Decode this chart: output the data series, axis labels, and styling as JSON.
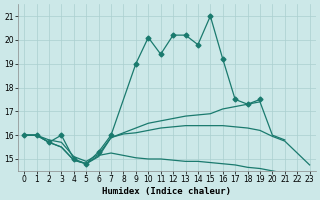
{
  "line_color": "#1a7a6e",
  "bg_color": "#cce8e8",
  "grid_color": "#aacfcf",
  "xlabel": "Humidex (Indice chaleur)",
  "xlim": [
    -0.5,
    23.5
  ],
  "ylim": [
    14.5,
    21.5
  ],
  "yticks": [
    15,
    16,
    17,
    18,
    19,
    20,
    21
  ],
  "xticks": [
    0,
    1,
    2,
    3,
    4,
    5,
    6,
    7,
    8,
    9,
    10,
    11,
    12,
    13,
    14,
    15,
    16,
    17,
    18,
    19,
    20,
    21,
    22,
    23
  ],
  "markersize": 2.5,
  "linewidth": 0.9,
  "label_fontsize": 6.5,
  "tick_fontsize": 5.5,
  "series": [
    {
      "name": "upper_peak",
      "x": [
        0,
        1,
        2,
        3,
        4,
        5,
        6,
        7,
        9,
        10,
        11,
        12,
        13,
        14,
        15,
        16,
        17,
        18,
        19
      ],
      "y": [
        16.0,
        16.0,
        15.7,
        16.0,
        15.0,
        14.8,
        15.3,
        16.0,
        19.0,
        20.1,
        19.4,
        20.2,
        20.2,
        19.8,
        21.0,
        19.2,
        17.5,
        17.3,
        17.5
      ],
      "marker": true
    },
    {
      "name": "mid_upper_linear",
      "x": [
        0,
        1,
        2,
        3,
        4,
        5,
        6,
        7,
        8,
        9,
        10,
        11,
        12,
        13,
        14,
        15,
        16,
        17,
        18,
        19,
        20,
        21
      ],
      "y": [
        16.0,
        16.0,
        15.8,
        15.7,
        15.1,
        14.9,
        15.2,
        15.9,
        16.1,
        16.3,
        16.5,
        16.6,
        16.7,
        16.8,
        16.85,
        16.9,
        17.1,
        17.2,
        17.3,
        17.4,
        16.0,
        15.8
      ],
      "marker": false
    },
    {
      "name": "mid_lower_flat",
      "x": [
        0,
        1,
        2,
        3,
        4,
        5,
        6,
        7,
        8,
        9,
        10,
        11,
        12,
        13,
        14,
        15,
        16,
        17,
        18,
        19,
        20,
        21,
        22,
        23
      ],
      "y": [
        16.0,
        16.0,
        15.7,
        15.5,
        14.95,
        14.8,
        15.15,
        15.25,
        15.15,
        15.05,
        15.0,
        15.0,
        14.95,
        14.9,
        14.9,
        14.85,
        14.8,
        14.75,
        14.65,
        14.6,
        14.5,
        14.4,
        14.3,
        14.2
      ],
      "marker": false
    },
    {
      "name": "bottom_descend",
      "x": [
        0,
        1,
        2,
        3,
        4,
        5,
        6,
        7,
        8,
        9,
        10,
        11,
        12,
        13,
        14,
        15,
        16,
        17,
        18,
        19,
        20,
        21,
        22,
        23
      ],
      "y": [
        16.0,
        16.0,
        15.7,
        15.5,
        14.95,
        14.8,
        15.1,
        15.9,
        16.05,
        16.1,
        16.2,
        16.3,
        16.35,
        16.4,
        16.4,
        16.4,
        16.4,
        16.35,
        16.3,
        16.2,
        15.95,
        15.75,
        15.25,
        14.75
      ],
      "marker": false
    }
  ]
}
